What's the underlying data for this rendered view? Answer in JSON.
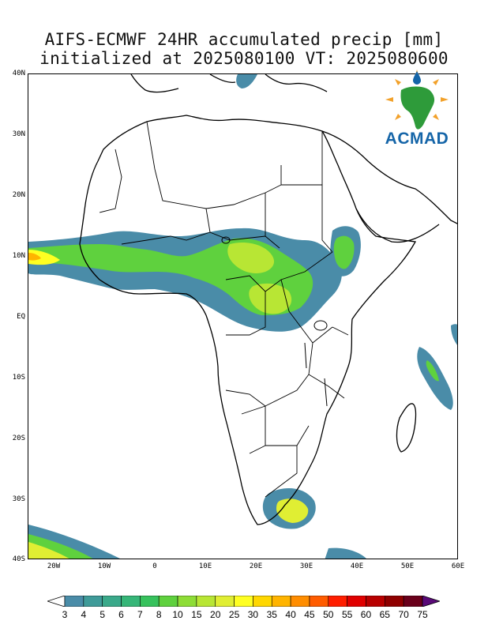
{
  "title": {
    "line1": "AIFS-ECMWF 24HR accumulated precip [mm]",
    "line2": "initialized at 2025080100 VT: 2025080600"
  },
  "axes": {
    "y_labels": [
      "40N",
      "30N",
      "20N",
      "10N",
      "EQ",
      "10S",
      "20S",
      "30S",
      "40S"
    ],
    "x_labels": [
      "20W",
      "10W",
      "0",
      "10E",
      "20E",
      "30E",
      "40E",
      "50E",
      "60E"
    ]
  },
  "logo": {
    "text": "ACMAD",
    "text_color": "#1565a8",
    "map_color": "#2e9b3a",
    "ray_color": "#f2a12a"
  },
  "colorbar": {
    "labels": [
      "3",
      "4",
      "5",
      "6",
      "7",
      "8",
      "10",
      "15",
      "20",
      "25",
      "30",
      "35",
      "40",
      "45",
      "50",
      "55",
      "60",
      "65",
      "70",
      "75"
    ],
    "colors": [
      "#4a8ca8",
      "#3f9b99",
      "#3aa98a",
      "#36b678",
      "#37c25d",
      "#5fd13e",
      "#8edd36",
      "#b8e634",
      "#e0ee33",
      "#ffff22",
      "#ffd700",
      "#ffb400",
      "#ff8d00",
      "#ff5c00",
      "#ff1e00",
      "#e00000",
      "#b80000",
      "#8f0000",
      "#6a001b"
    ]
  }
}
